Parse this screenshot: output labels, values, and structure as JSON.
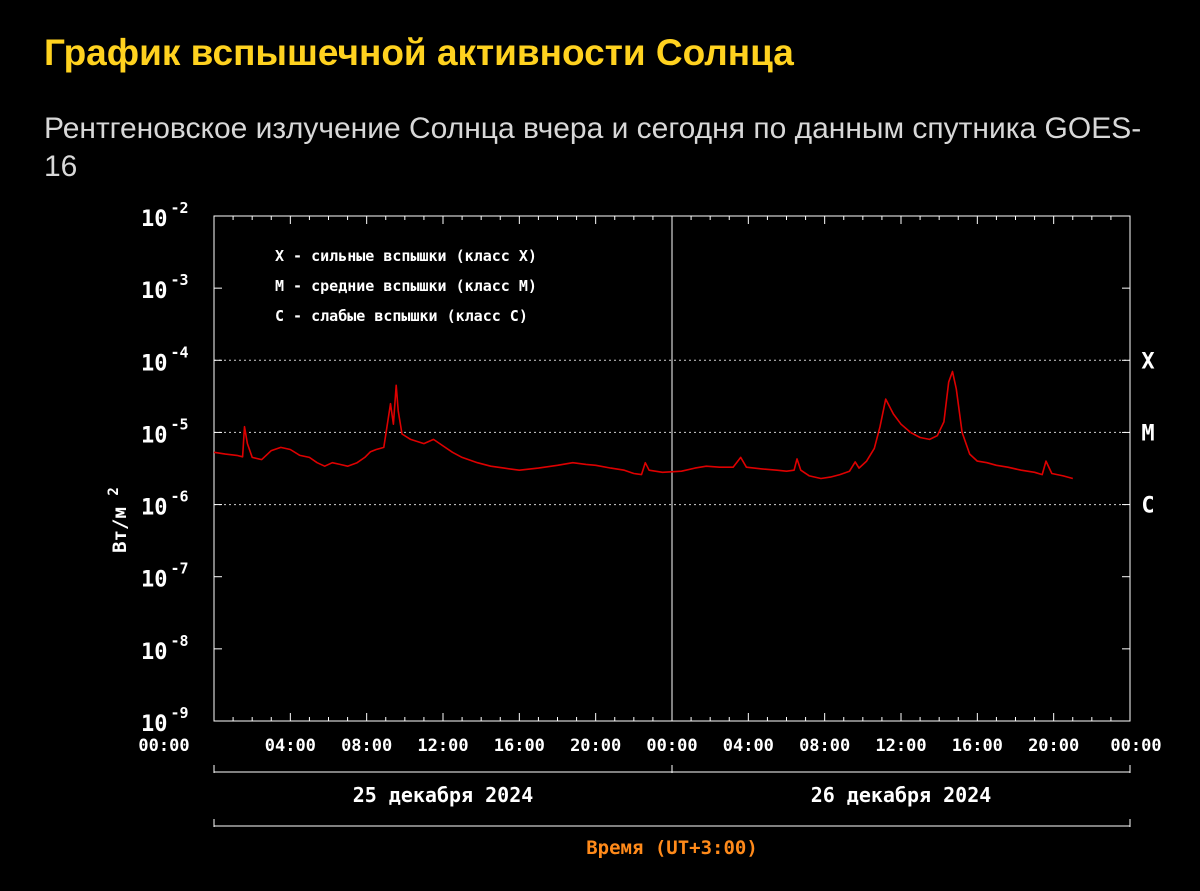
{
  "page": {
    "title": "График вспышечной активности Солнца",
    "subtitle": "Рентгеновское излучение Солнца вчера и сегодня по данным спутника GOES-16"
  },
  "chart_data": {
    "type": "line",
    "title": "",
    "ylabel_base": "Вт/м",
    "ylabel_exp": "2",
    "xlabel": "Время (UT+3:00)",
    "scale": "log",
    "ylim": [
      1e-09,
      0.01
    ],
    "y_ticks": [
      {
        "base": "10",
        "exp": "-2",
        "value": 0.01
      },
      {
        "base": "10",
        "exp": "-3",
        "value": 0.001
      },
      {
        "base": "10",
        "exp": "-4",
        "value": 0.0001
      },
      {
        "base": "10",
        "exp": "-5",
        "value": 1e-05
      },
      {
        "base": "10",
        "exp": "-6",
        "value": 1e-06
      },
      {
        "base": "10",
        "exp": "-7",
        "value": 1e-07
      },
      {
        "base": "10",
        "exp": "-8",
        "value": 1e-08
      },
      {
        "base": "10",
        "exp": "-9",
        "value": 1e-09
      }
    ],
    "xlim": [
      0,
      48
    ],
    "x_tick_labels": [
      "00:00",
      "04:00",
      "08:00",
      "12:00",
      "16:00",
      "20:00",
      "00:00",
      "04:00",
      "08:00",
      "12:00",
      "16:00",
      "20:00",
      "00:00"
    ],
    "day_labels": [
      "25 декабря 2024",
      "26 декабря 2024"
    ],
    "day_divider_hour": 24,
    "class_levels": [
      {
        "label": "X",
        "value": 0.0001
      },
      {
        "label": "M",
        "value": 1e-05
      },
      {
        "label": "C",
        "value": 1e-06
      }
    ],
    "legend": [
      "X - сильные вспышки (класс X)",
      "M - средние вспышки (класс M)",
      "C - слабые вспышки (класс C)"
    ],
    "legend_position": "top-left",
    "series": [
      {
        "color": "#dd0000",
        "points": [
          [
            0.0,
            5.3e-06
          ],
          [
            0.6,
            5e-06
          ],
          [
            1.2,
            4.8e-06
          ],
          [
            1.5,
            4.6e-06
          ],
          [
            1.6,
            1.2e-05
          ],
          [
            1.75,
            7e-06
          ],
          [
            2.0,
            4.5e-06
          ],
          [
            2.5,
            4.2e-06
          ],
          [
            3.0,
            5.6e-06
          ],
          [
            3.5,
            6.2e-06
          ],
          [
            4.0,
            5.8e-06
          ],
          [
            4.5,
            4.8e-06
          ],
          [
            5.0,
            4.5e-06
          ],
          [
            5.4,
            3.8e-06
          ],
          [
            5.8,
            3.4e-06
          ],
          [
            6.2,
            3.8e-06
          ],
          [
            6.6,
            3.6e-06
          ],
          [
            7.0,
            3.4e-06
          ],
          [
            7.5,
            3.8e-06
          ],
          [
            7.9,
            4.5e-06
          ],
          [
            8.2,
            5.4e-06
          ],
          [
            8.5,
            5.8e-06
          ],
          [
            8.9,
            6.2e-06
          ],
          [
            9.25,
            2.5e-05
          ],
          [
            9.4,
            1.3e-05
          ],
          [
            9.55,
            4.5e-05
          ],
          [
            9.65,
            2e-05
          ],
          [
            9.85,
            9.5e-06
          ],
          [
            10.3,
            8e-06
          ],
          [
            11.0,
            7e-06
          ],
          [
            11.5,
            8e-06
          ],
          [
            12.0,
            6.5e-06
          ],
          [
            12.5,
            5.3e-06
          ],
          [
            13.0,
            4.5e-06
          ],
          [
            13.8,
            3.8e-06
          ],
          [
            14.5,
            3.4e-06
          ],
          [
            15.2,
            3.2e-06
          ],
          [
            16.0,
            3e-06
          ],
          [
            17.0,
            3.2e-06
          ],
          [
            18.0,
            3.5e-06
          ],
          [
            18.8,
            3.8e-06
          ],
          [
            19.5,
            3.6e-06
          ],
          [
            20.0,
            3.5e-06
          ],
          [
            20.8,
            3.2e-06
          ],
          [
            21.5,
            3e-06
          ],
          [
            22.0,
            2.7e-06
          ],
          [
            22.4,
            2.6e-06
          ],
          [
            22.6,
            3.8e-06
          ],
          [
            22.8,
            3e-06
          ],
          [
            23.5,
            2.8e-06
          ],
          [
            24.5,
            2.9e-06
          ],
          [
            25.2,
            3.2e-06
          ],
          [
            25.8,
            3.4e-06
          ],
          [
            26.5,
            3.3e-06
          ],
          [
            27.2,
            3.3e-06
          ],
          [
            27.6,
            4.5e-06
          ],
          [
            27.9,
            3.3e-06
          ],
          [
            28.8,
            3.1e-06
          ],
          [
            29.5,
            3e-06
          ],
          [
            30.0,
            2.9e-06
          ],
          [
            30.4,
            3e-06
          ],
          [
            30.55,
            4.3e-06
          ],
          [
            30.75,
            3e-06
          ],
          [
            31.2,
            2.5e-06
          ],
          [
            31.8,
            2.3e-06
          ],
          [
            32.3,
            2.4e-06
          ],
          [
            32.8,
            2.6e-06
          ],
          [
            33.3,
            2.9e-06
          ],
          [
            33.6,
            3.9e-06
          ],
          [
            33.8,
            3.2e-06
          ],
          [
            34.2,
            4e-06
          ],
          [
            34.6,
            6e-06
          ],
          [
            34.9,
            1.2e-05
          ],
          [
            35.2,
            2.9e-05
          ],
          [
            35.6,
            1.8e-05
          ],
          [
            36.0,
            1.3e-05
          ],
          [
            36.5,
            1e-05
          ],
          [
            37.0,
            8.5e-06
          ],
          [
            37.5,
            8e-06
          ],
          [
            37.9,
            9e-06
          ],
          [
            38.25,
            1.4e-05
          ],
          [
            38.5,
            5e-05
          ],
          [
            38.7,
            7e-05
          ],
          [
            38.9,
            4e-05
          ],
          [
            39.2,
            1e-05
          ],
          [
            39.6,
            5e-06
          ],
          [
            40.0,
            4e-06
          ],
          [
            40.5,
            3.8e-06
          ],
          [
            41.0,
            3.5e-06
          ],
          [
            41.6,
            3.3e-06
          ],
          [
            42.3,
            3e-06
          ],
          [
            43.0,
            2.8e-06
          ],
          [
            43.4,
            2.6e-06
          ],
          [
            43.6,
            4e-06
          ],
          [
            43.9,
            2.7e-06
          ],
          [
            44.5,
            2.5e-06
          ],
          [
            45.0,
            2.3e-06
          ]
        ]
      }
    ]
  }
}
